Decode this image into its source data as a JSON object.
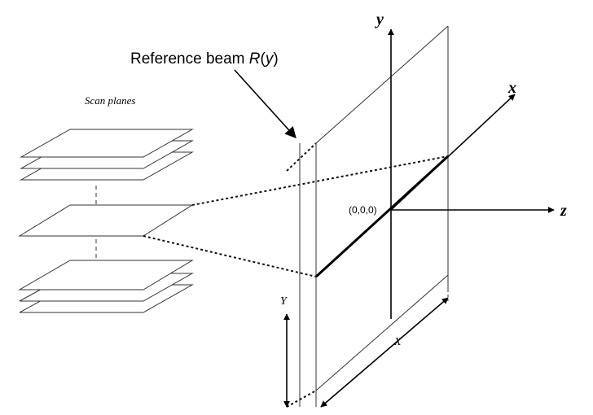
{
  "diagram": {
    "title_main": "Reference beam ",
    "title_var": "R",
    "title_open": "(",
    "title_arg": "y",
    "title_close": ")",
    "scan_planes_label": "Scan planes",
    "origin_label": "(0,0,0)",
    "axis_x_label": "x",
    "axis_y_label": "y",
    "axis_z_label": "z",
    "dim_x_label": "X",
    "dim_y_label": "Y"
  },
  "colors": {
    "stroke": "#333333",
    "axis": "#000000",
    "background": "#ffffff"
  }
}
